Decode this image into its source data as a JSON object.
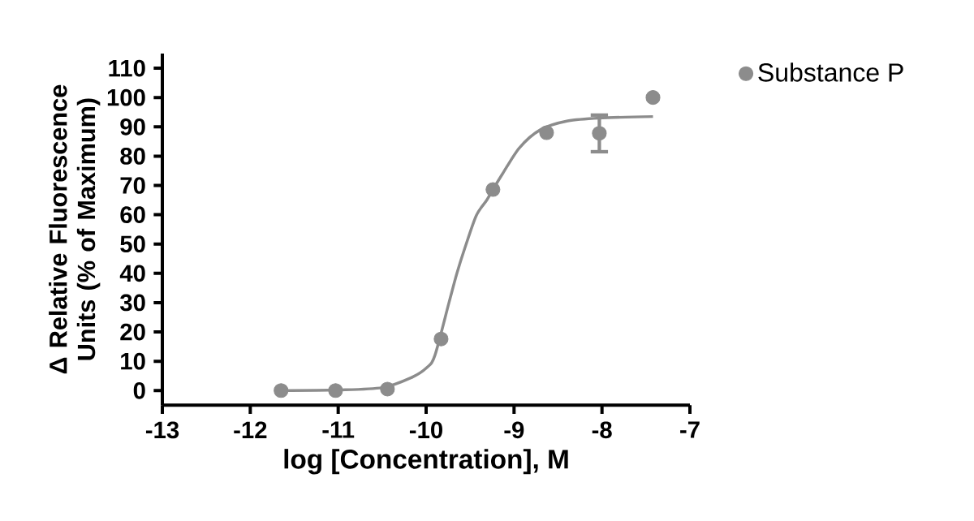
{
  "chart_data": {
    "type": "scatter",
    "xlabel": "log [Concentration], M",
    "ylabel": "Δ Relative Fluorescence Units (% of Maximum)",
    "xlim": [
      -13,
      -7
    ],
    "ylim": [
      -5,
      115
    ],
    "xticks": [
      -13,
      -12,
      -11,
      -10,
      -9,
      -8,
      -7
    ],
    "yticks": [
      0,
      10,
      20,
      30,
      40,
      50,
      60,
      70,
      80,
      90,
      100,
      110
    ],
    "legend": "top right",
    "series": [
      {
        "name": "Substance P",
        "color": "#8c8c8c",
        "x": [
          -11.65,
          -11.03,
          -10.44,
          -9.83,
          -9.24,
          -8.63,
          -8.03,
          -7.42
        ],
        "values": [
          0,
          0,
          0.5,
          17.6,
          68.6,
          88,
          87.8,
          100
        ],
        "errors": [
          null,
          null,
          null,
          null,
          null,
          null,
          [
            81.5,
            94
          ],
          null
        ]
      },
      {
        "type": "line",
        "marker": "none",
        "color": "#8c8c8c",
        "x": [
          -11.65,
          -11.0,
          -10.5,
          -10.17,
          -9.99,
          -9.9,
          -9.74,
          -9.65,
          -9.56,
          -9.43,
          -9.31,
          -9.24,
          -9.13,
          -8.94,
          -8.7,
          -8.39,
          -8.03,
          -7.42
        ],
        "values": [
          0,
          0.2,
          1,
          4.4,
          7.9,
          12,
          30,
          40,
          48.6,
          59.7,
          65,
          68.6,
          74,
          82.8,
          89,
          92,
          93,
          93.5
        ]
      }
    ]
  }
}
